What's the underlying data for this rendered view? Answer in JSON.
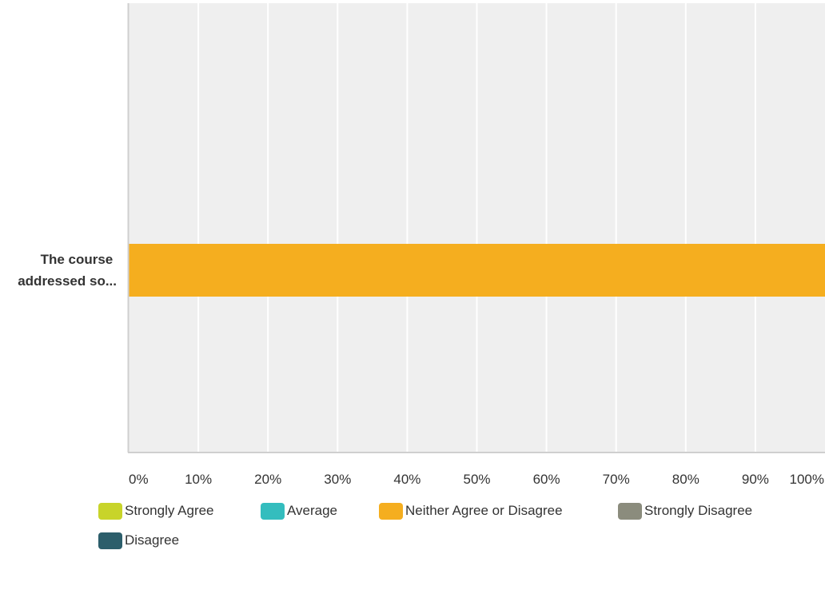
{
  "chart_data": {
    "type": "bar",
    "orientation": "horizontal",
    "stacked": true,
    "categories": [
      "The course addressed so..."
    ],
    "category_label_lines": [
      "The course",
      "addressed so..."
    ],
    "x_ticks": [
      "0%",
      "10%",
      "20%",
      "30%",
      "40%",
      "50%",
      "60%",
      "70%",
      "80%",
      "90%",
      "100%"
    ],
    "xlim": [
      0,
      100
    ],
    "grid": true,
    "legend_position": "bottom",
    "series": [
      {
        "name": "Strongly Agree",
        "color": "#c8d42a",
        "values": [
          0
        ]
      },
      {
        "name": "Average",
        "color": "#34bdbe",
        "values": [
          0
        ]
      },
      {
        "name": "Neither Agree or Disagree",
        "color": "#f5ae1f",
        "values": [
          100
        ]
      },
      {
        "name": "Strongly Disagree",
        "color": "#8b8c7d",
        "values": [
          0
        ]
      },
      {
        "name": "Disagree",
        "color": "#2c5e6b",
        "values": [
          0
        ]
      }
    ],
    "colors": {
      "plot_background": "#efefef",
      "gridline": "#ffffff",
      "axis": "#cfcfcf"
    }
  }
}
